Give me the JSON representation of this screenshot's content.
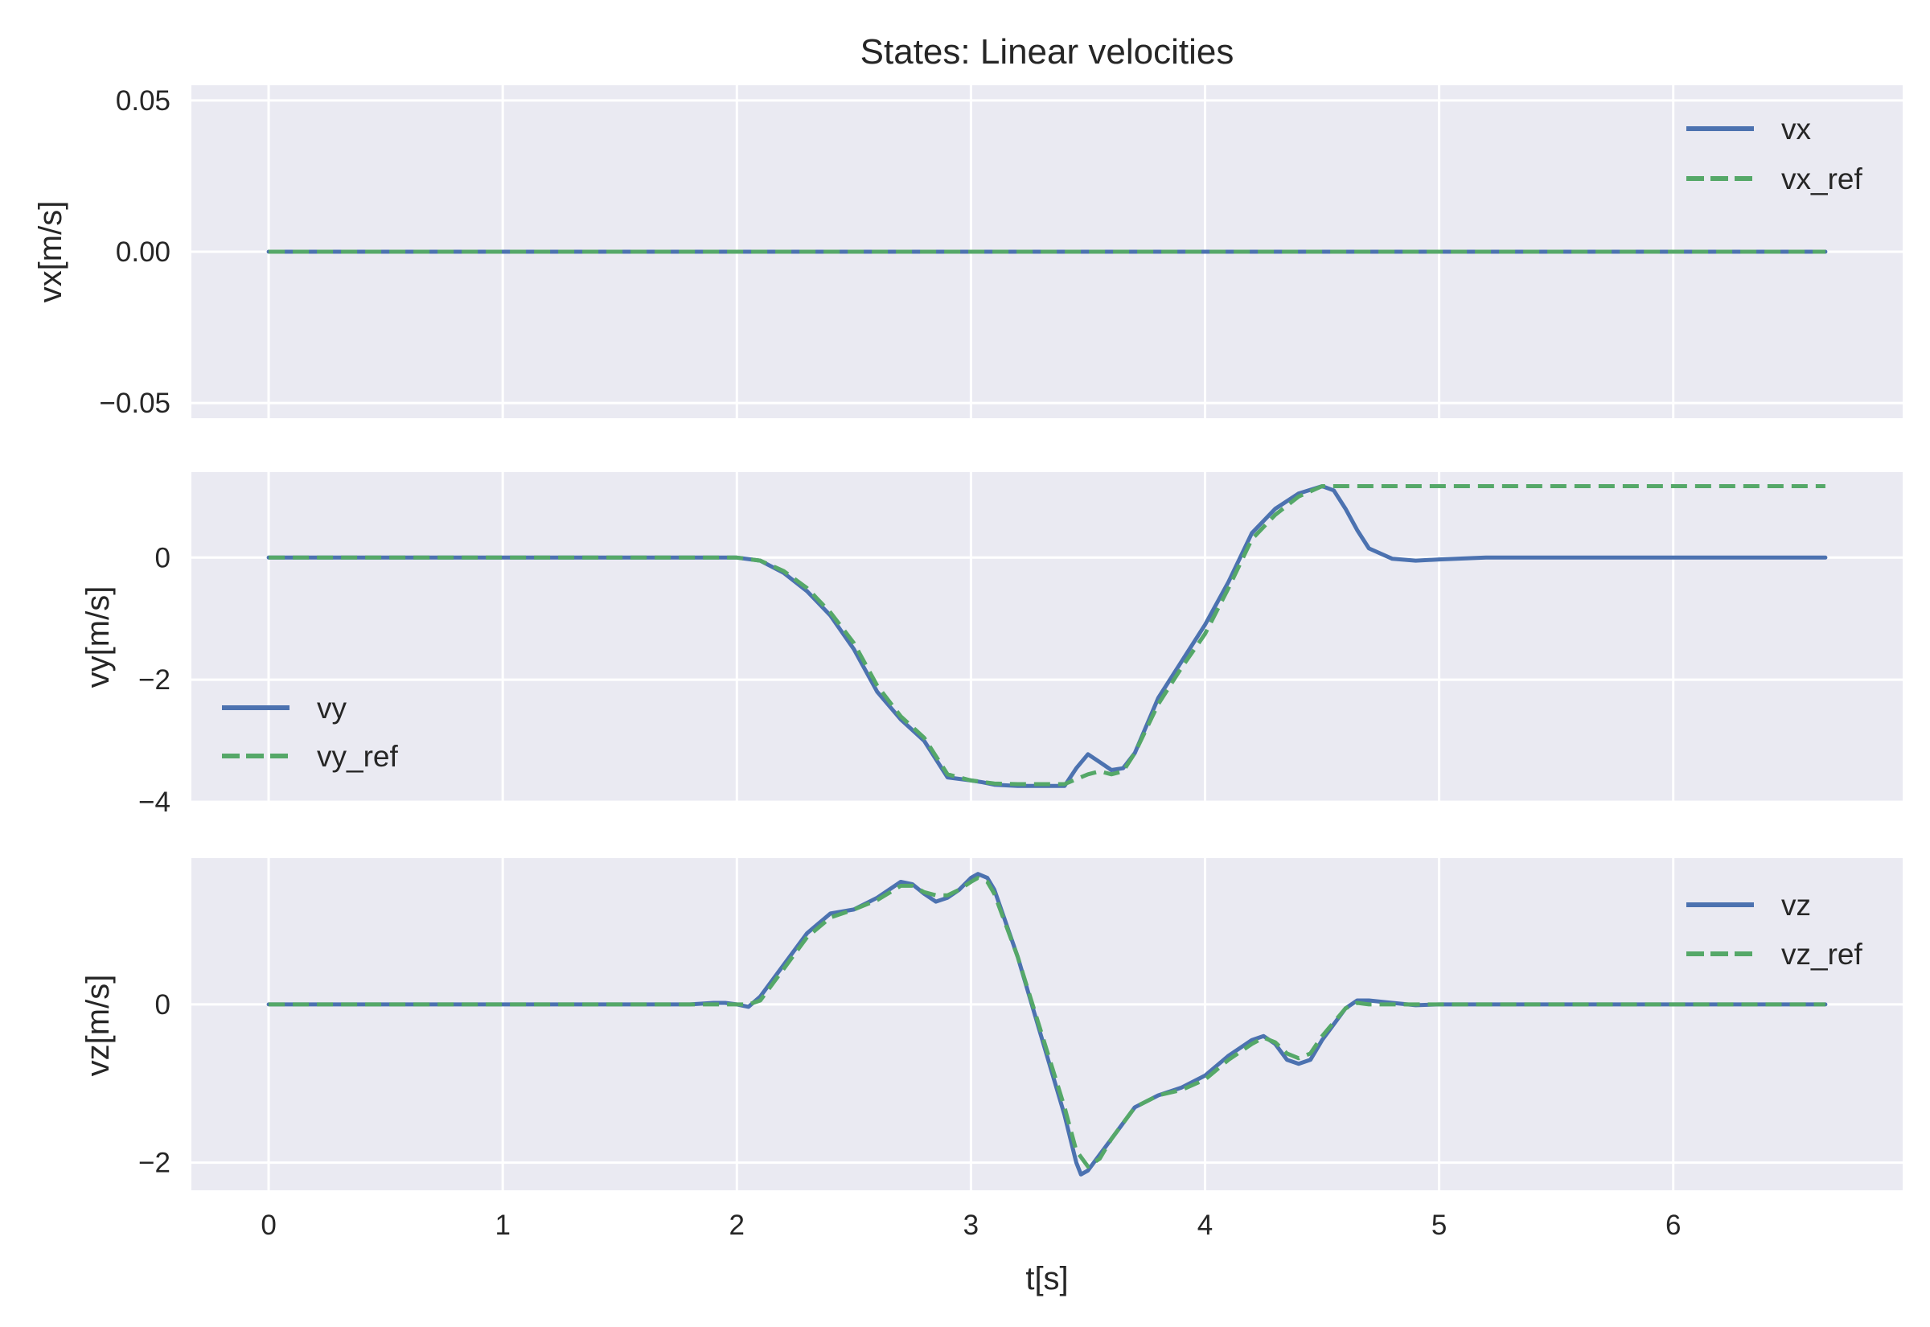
{
  "chart_data": {
    "type": "line",
    "title": "States: Linear velocities",
    "xlabel": "t[s]",
    "x_range": [
      -0.33,
      6.98
    ],
    "x_ticks": [
      0,
      1,
      2,
      3,
      4,
      5,
      6
    ],
    "x_tick_labels": [
      "0",
      "1",
      "2",
      "3",
      "4",
      "5",
      "6"
    ],
    "grid": true,
    "colors": {
      "background": "#EAEAF2",
      "grid": "#FFFFFF",
      "actual": "#4C72B0",
      "reference": "#55A868"
    },
    "subplots": [
      {
        "ylabel": "vx[m/s]",
        "ylim": [
          -0.055,
          0.055
        ],
        "y_ticks": [
          -0.05,
          0,
          0.05
        ],
        "y_tick_labels": [
          "−0.05",
          "0.00",
          "0.05"
        ],
        "legend_placement": "upper right",
        "series": [
          {
            "name": "vx",
            "style": "solid",
            "x": [
              0,
              6.65
            ],
            "y": [
              0,
              0
            ]
          },
          {
            "name": "vx_ref",
            "style": "dashed",
            "x": [
              0,
              6.65
            ],
            "y": [
              0,
              0
            ]
          }
        ]
      },
      {
        "ylabel": "vy[m/s]",
        "ylim": [
          -4.0,
          1.4
        ],
        "y_ticks": [
          -4,
          -2,
          0
        ],
        "y_tick_labels": [
          "−4",
          "−2",
          "0"
        ],
        "legend_placement": "center left",
        "series": [
          {
            "name": "vy",
            "style": "solid",
            "x": [
              0,
              1.9,
              2.0,
              2.1,
              2.2,
              2.3,
              2.4,
              2.5,
              2.6,
              2.7,
              2.8,
              2.9,
              3.0,
              3.05,
              3.1,
              3.2,
              3.3,
              3.4,
              3.45,
              3.5,
              3.55,
              3.6,
              3.65,
              3.7,
              3.8,
              3.9,
              4.0,
              4.1,
              4.2,
              4.3,
              4.4,
              4.5,
              4.55,
              4.6,
              4.65,
              4.7,
              4.8,
              4.9,
              5.0,
              5.2,
              6.65
            ],
            "y": [
              0,
              0,
              0,
              -0.05,
              -0.25,
              -0.55,
              -0.95,
              -1.5,
              -2.2,
              -2.65,
              -3.0,
              -3.6,
              -3.65,
              -3.68,
              -3.72,
              -3.74,
              -3.74,
              -3.74,
              -3.45,
              -3.22,
              -3.35,
              -3.48,
              -3.45,
              -3.2,
              -2.3,
              -1.7,
              -1.1,
              -0.4,
              0.4,
              0.8,
              1.05,
              1.17,
              1.1,
              0.8,
              0.45,
              0.15,
              -0.02,
              -0.05,
              -0.03,
              0,
              0
            ]
          },
          {
            "name": "vy_ref",
            "style": "dashed",
            "x": [
              0,
              2.0,
              2.1,
              2.2,
              2.3,
              2.4,
              2.5,
              2.6,
              2.7,
              2.8,
              2.9,
              3.0,
              3.1,
              3.2,
              3.3,
              3.4,
              3.5,
              3.55,
              3.6,
              3.65,
              3.7,
              3.8,
              3.9,
              4.0,
              4.1,
              4.2,
              4.3,
              4.4,
              4.5,
              6.65
            ],
            "y": [
              0,
              0,
              -0.05,
              -0.22,
              -0.5,
              -0.9,
              -1.4,
              -2.1,
              -2.6,
              -2.95,
              -3.55,
              -3.65,
              -3.7,
              -3.71,
              -3.71,
              -3.71,
              -3.55,
              -3.5,
              -3.55,
              -3.5,
              -3.2,
              -2.4,
              -1.8,
              -1.25,
              -0.5,
              0.3,
              0.7,
              1.0,
              1.17,
              1.17
            ]
          }
        ]
      },
      {
        "ylabel": "vz[m/s]",
        "ylim": [
          -2.35,
          1.85
        ],
        "y_ticks": [
          -2,
          0
        ],
        "y_tick_labels": [
          "−2",
          "0"
        ],
        "legend_placement": "upper right",
        "series": [
          {
            "name": "vz",
            "style": "solid",
            "x": [
              0,
              1.8,
              1.9,
              1.95,
              2.0,
              2.05,
              2.1,
              2.2,
              2.3,
              2.4,
              2.5,
              2.6,
              2.7,
              2.75,
              2.8,
              2.85,
              2.9,
              2.95,
              3.0,
              3.03,
              3.07,
              3.1,
              3.2,
              3.3,
              3.4,
              3.45,
              3.47,
              3.5,
              3.55,
              3.6,
              3.7,
              3.8,
              3.9,
              4.0,
              4.1,
              4.2,
              4.25,
              4.3,
              4.35,
              4.4,
              4.45,
              4.5,
              4.6,
              4.65,
              4.7,
              4.8,
              4.9,
              5.0,
              6.65
            ],
            "y": [
              0,
              0,
              0.02,
              0.02,
              0,
              -0.03,
              0.1,
              0.5,
              0.9,
              1.15,
              1.2,
              1.35,
              1.55,
              1.52,
              1.4,
              1.3,
              1.35,
              1.45,
              1.6,
              1.65,
              1.6,
              1.45,
              0.6,
              -0.4,
              -1.4,
              -2.0,
              -2.15,
              -2.1,
              -1.9,
              -1.7,
              -1.3,
              -1.15,
              -1.05,
              -0.9,
              -0.65,
              -0.45,
              -0.4,
              -0.5,
              -0.7,
              -0.75,
              -0.7,
              -0.45,
              -0.05,
              0.05,
              0.05,
              0.02,
              -0.01,
              0,
              0
            ]
          },
          {
            "name": "vz_ref",
            "style": "dashed",
            "x": [
              0,
              2.0,
              2.05,
              2.1,
              2.2,
              2.3,
              2.4,
              2.5,
              2.6,
              2.7,
              2.75,
              2.8,
              2.85,
              2.9,
              2.95,
              3.0,
              3.03,
              3.07,
              3.1,
              3.2,
              3.3,
              3.4,
              3.45,
              3.5,
              3.55,
              3.6,
              3.7,
              3.8,
              3.9,
              4.0,
              4.1,
              4.2,
              4.25,
              4.3,
              4.35,
              4.4,
              4.45,
              4.5,
              4.6,
              4.65,
              4.7,
              6.65
            ],
            "y": [
              0,
              0,
              0,
              0.05,
              0.45,
              0.85,
              1.1,
              1.2,
              1.32,
              1.5,
              1.5,
              1.42,
              1.38,
              1.38,
              1.45,
              1.55,
              1.6,
              1.55,
              1.4,
              0.6,
              -0.35,
              -1.3,
              -1.85,
              -2.05,
              -1.95,
              -1.7,
              -1.3,
              -1.15,
              -1.08,
              -0.95,
              -0.7,
              -0.5,
              -0.42,
              -0.48,
              -0.62,
              -0.68,
              -0.62,
              -0.4,
              -0.05,
              0.02,
              0,
              0
            ]
          }
        ]
      }
    ]
  }
}
